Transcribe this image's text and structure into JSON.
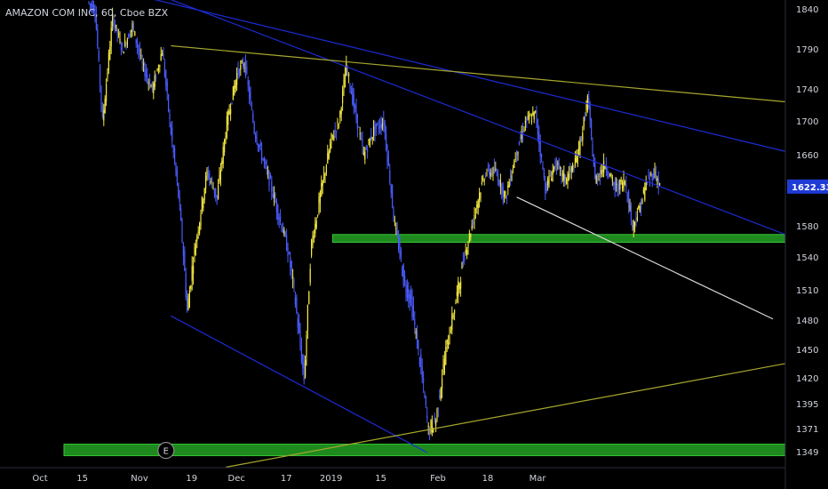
{
  "header": {
    "symbol_title": "AMAZON COM INC, 60, Cboe BZX"
  },
  "chart_data": {
    "type": "candlestick",
    "title": "AMAZON COM INC, 60, Cboe BZX",
    "interval": "60",
    "exchange": "Cboe BZX",
    "y_axis_side": "right",
    "y_ticks": [
      1840,
      1790,
      1740,
      1700,
      1660,
      1620,
      1580,
      1540,
      1510,
      1480,
      1450,
      1420,
      1395,
      1371,
      1349
    ],
    "x_ticks": [
      "Oct",
      "15",
      "Nov",
      "19",
      "Dec",
      "17",
      "2019",
      "15",
      "Feb",
      "18",
      "Mar"
    ],
    "last_price": "1622.33",
    "last_price_value": 1622.33,
    "colors": {
      "background": "#000000",
      "candle_up": "#f5e942",
      "candle_down": "#4a5cff",
      "trendline_blue": "#1c2bd6",
      "trendline_olive": "#a6a62e",
      "trendline_white": "#d8d8d8",
      "support_zone": "#1e8a1e",
      "price_tag": "#1e3bd6",
      "axis_text": "#d1d4dc"
    },
    "price_path": [
      [
        0,
        1850
      ],
      [
        3,
        1840
      ],
      [
        6,
        1700
      ],
      [
        10,
        1830
      ],
      [
        14,
        1790
      ],
      [
        18,
        1820
      ],
      [
        22,
        1770
      ],
      [
        26,
        1740
      ],
      [
        30,
        1790
      ],
      [
        33,
        1700
      ],
      [
        37,
        1600
      ],
      [
        40,
        1490
      ],
      [
        44,
        1570
      ],
      [
        48,
        1640
      ],
      [
        52,
        1610
      ],
      [
        56,
        1700
      ],
      [
        60,
        1760
      ],
      [
        63,
        1775
      ],
      [
        67,
        1690
      ],
      [
        71,
        1650
      ],
      [
        75,
        1610
      ],
      [
        79,
        1570
      ],
      [
        83,
        1510
      ],
      [
        87,
        1420
      ],
      [
        90,
        1560
      ],
      [
        94,
        1620
      ],
      [
        98,
        1680
      ],
      [
        101,
        1700
      ],
      [
        104,
        1770
      ],
      [
        107,
        1720
      ],
      [
        111,
        1660
      ],
      [
        115,
        1690
      ],
      [
        119,
        1700
      ],
      [
        123,
        1590
      ],
      [
        127,
        1520
      ],
      [
        130,
        1500
      ],
      [
        134,
        1430
      ],
      [
        137,
        1370
      ],
      [
        140,
        1380
      ],
      [
        144,
        1450
      ],
      [
        148,
        1500
      ],
      [
        152,
        1550
      ],
      [
        156,
        1600
      ],
      [
        160,
        1640
      ],
      [
        164,
        1640
      ],
      [
        168,
        1610
      ],
      [
        172,
        1660
      ],
      [
        176,
        1700
      ],
      [
        180,
        1710
      ],
      [
        184,
        1620
      ],
      [
        188,
        1650
      ],
      [
        192,
        1630
      ],
      [
        196,
        1650
      ],
      [
        199,
        1690
      ],
      [
        201,
        1730
      ],
      [
        204,
        1630
      ],
      [
        208,
        1650
      ],
      [
        212,
        1620
      ],
      [
        216,
        1630
      ],
      [
        219,
        1580
      ],
      [
        222,
        1600
      ],
      [
        225,
        1630
      ],
      [
        228,
        1640
      ],
      [
        230,
        1622
      ]
    ],
    "x_tick_index": [
      0,
      17,
      40,
      61,
      79,
      99,
      117,
      137,
      160,
      180,
      200
    ],
    "support_zones": [
      {
        "from_index": 98,
        "to_index": 280,
        "low": 1560,
        "high": 1570
      },
      {
        "from_index": -10,
        "to_index": 280,
        "low": 1346,
        "high": 1357
      }
    ],
    "trendlines": [
      {
        "color_key": "trendline_blue",
        "from": [
          10,
          1880
        ],
        "to": [
          280,
          1570
        ]
      },
      {
        "color_key": "trendline_blue",
        "from": [
          -10,
          1880
        ],
        "to": [
          280,
          1665
        ]
      },
      {
        "color_key": "trendline_blue",
        "from": [
          33,
          1485
        ],
        "to": [
          136,
          1349
        ]
      },
      {
        "color_key": "trendline_olive",
        "from": [
          33,
          1795
        ],
        "to": [
          280,
          1725
        ]
      },
      {
        "color_key": "trendline_olive",
        "from": [
          55,
          1335
        ],
        "to": [
          280,
          1436
        ]
      },
      {
        "color_key": "trendline_white",
        "from": [
          172,
          1611
        ],
        "to": [
          275,
          1482
        ]
      }
    ],
    "markers": [
      {
        "label": "E",
        "index": 31,
        "price": 1351
      }
    ]
  }
}
